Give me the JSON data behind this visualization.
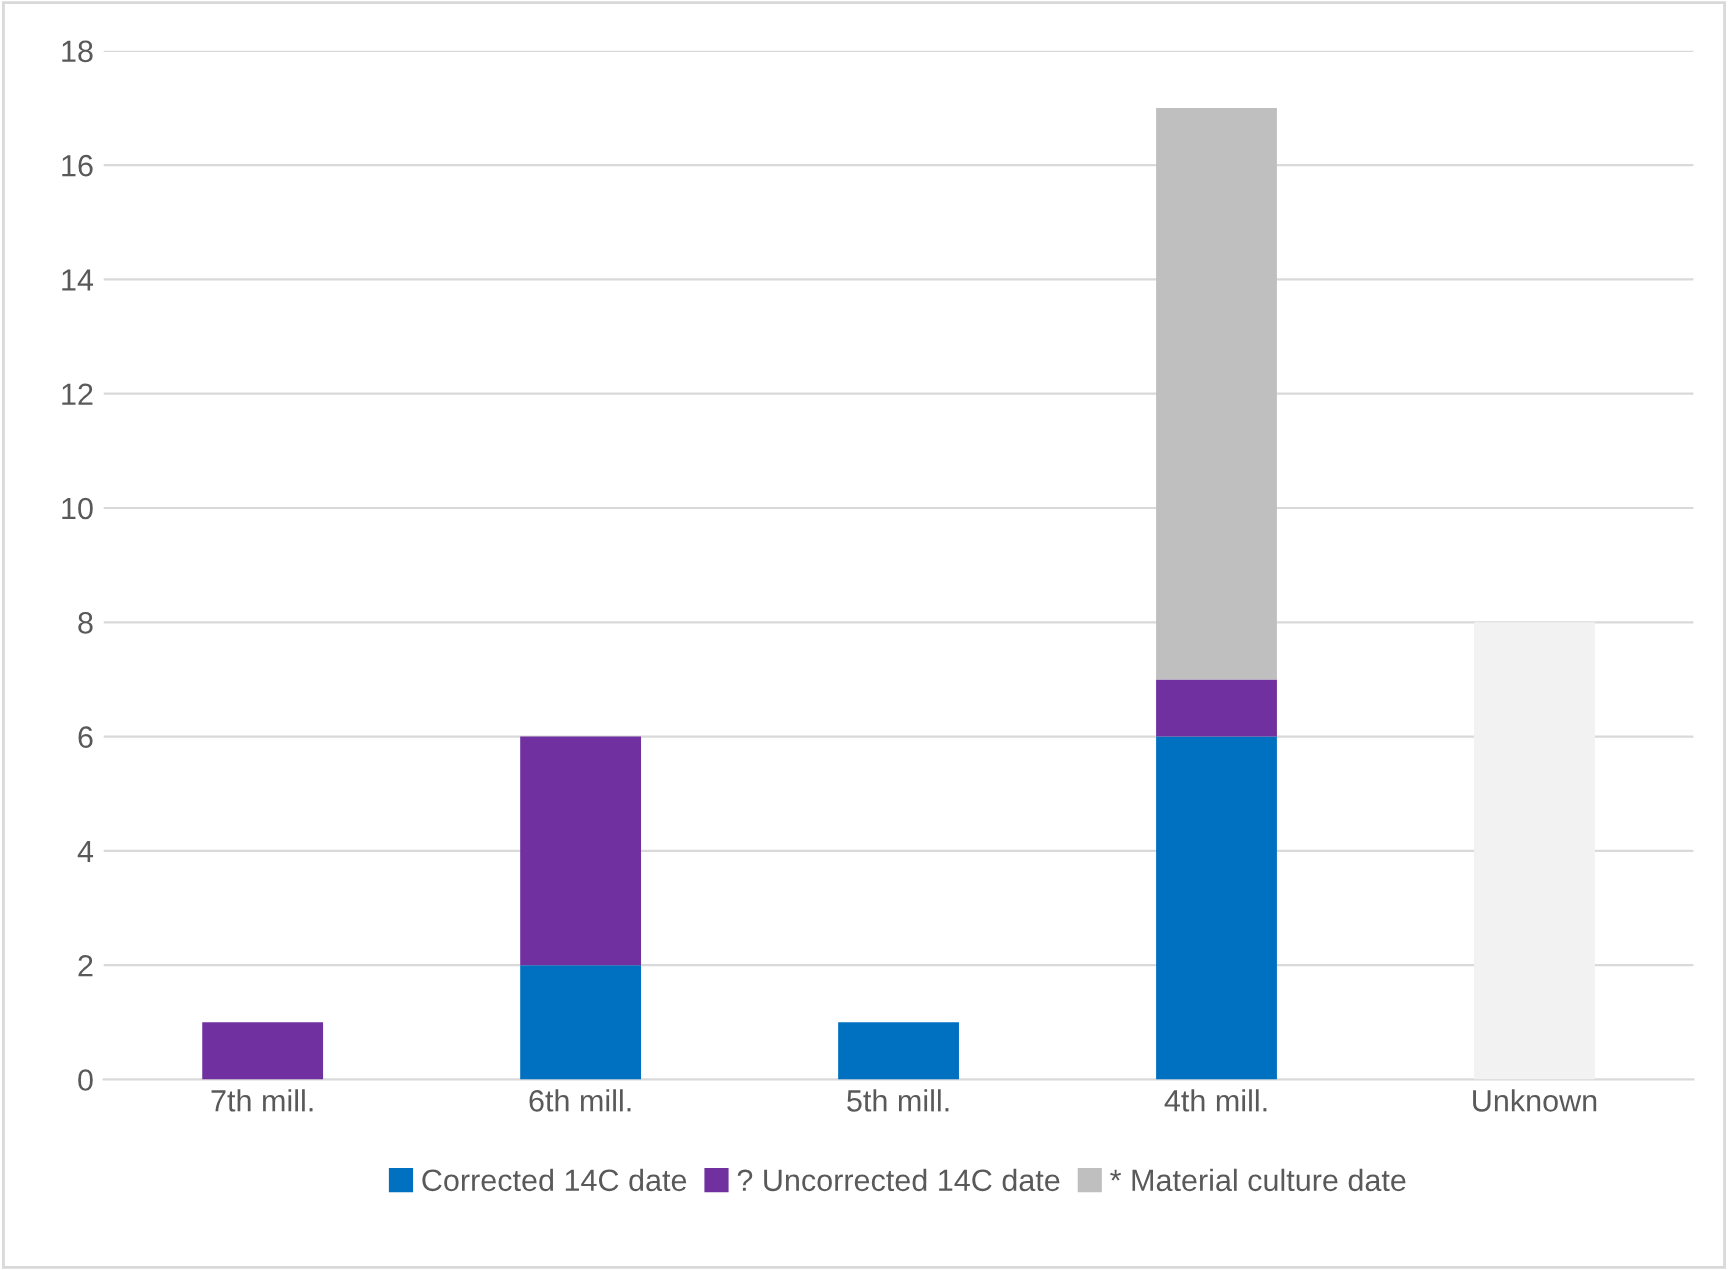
{
  "chart_data": {
    "type": "bar",
    "stacked": true,
    "categories": [
      "7th mill.",
      "6th mill.",
      "5th mill.",
      "4th mill.",
      "Unknown"
    ],
    "series": [
      {
        "name": "Corrected 14C date",
        "color": "#0070c0",
        "values": [
          0,
          2,
          1,
          6,
          0
        ]
      },
      {
        "name": "? Uncorrected 14C date",
        "color": "#7030a0",
        "values": [
          1,
          4,
          0,
          1,
          0
        ]
      },
      {
        "name": "* Material culture date",
        "color": "#bfbfbf",
        "colors": [
          "#bfbfbf",
          "#bfbfbf",
          "#bfbfbf",
          "#bfbfbf",
          "#f2f2f2"
        ],
        "values": [
          0,
          0,
          0,
          10,
          8
        ]
      }
    ],
    "ylim": [
      0,
      18
    ],
    "yticks": [
      0,
      2,
      4,
      6,
      8,
      10,
      12,
      14,
      16,
      18
    ],
    "grid": "y",
    "legend": "bottom"
  }
}
